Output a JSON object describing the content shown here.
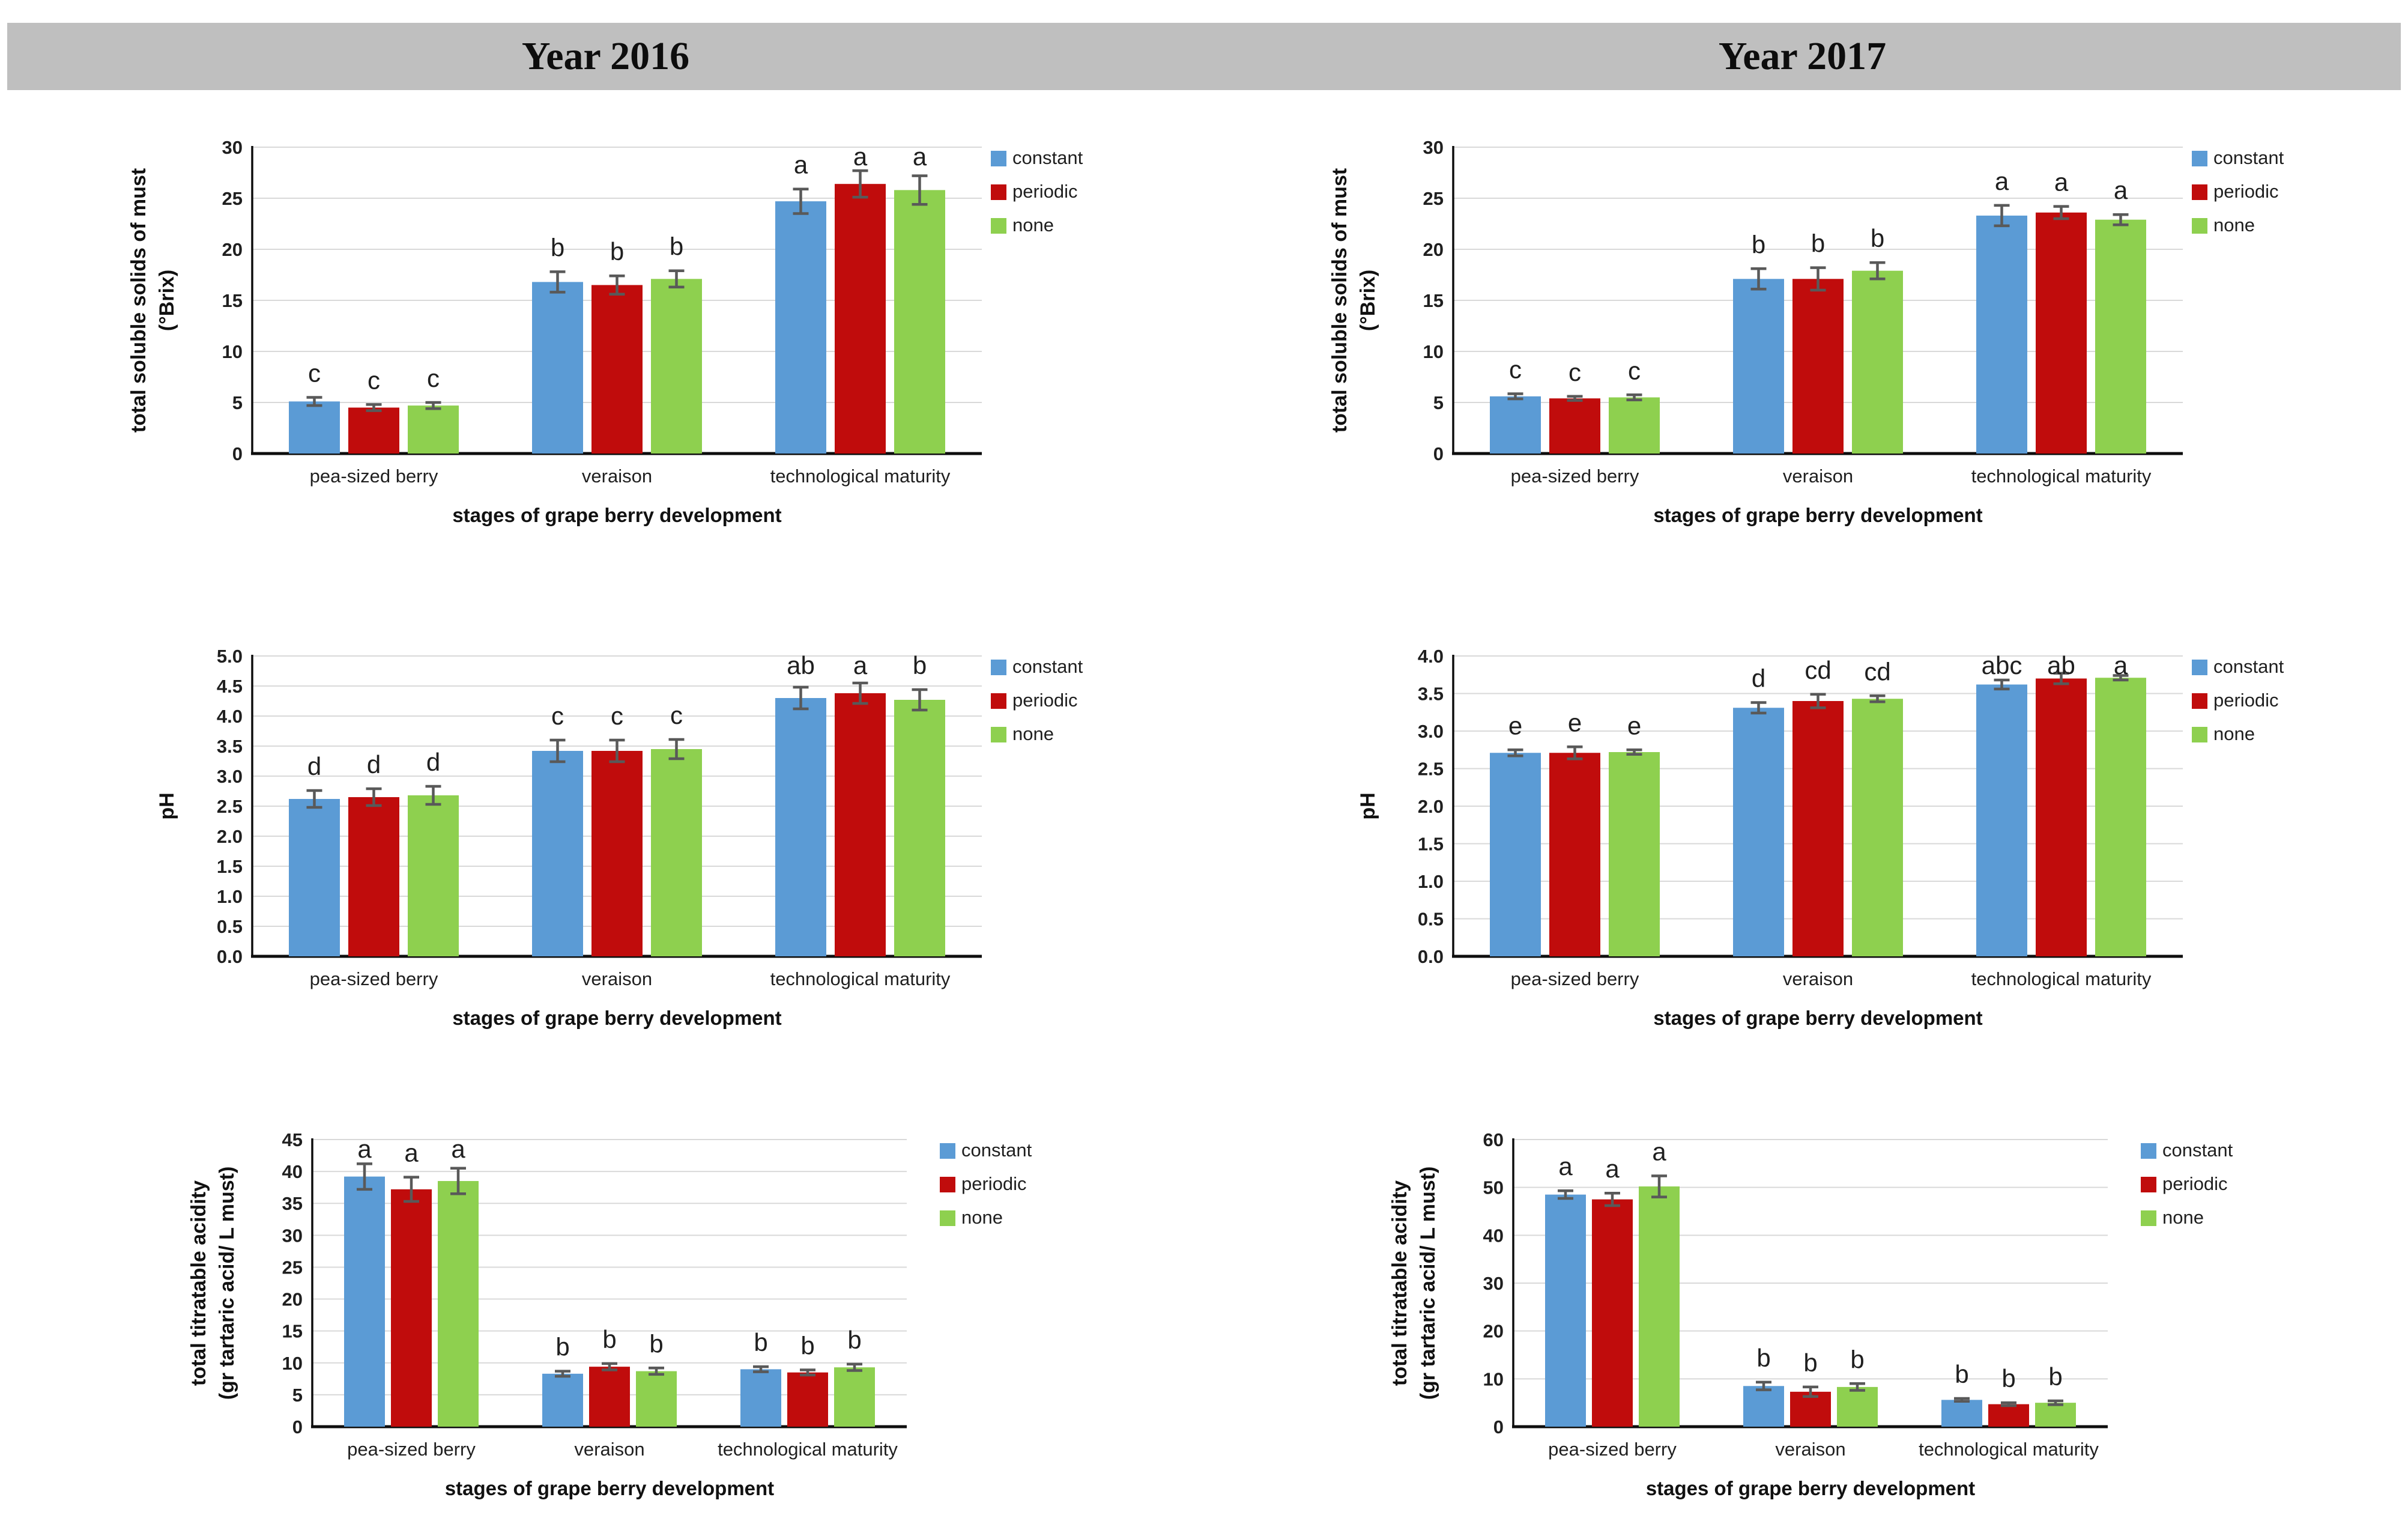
{
  "header": {
    "band_color": "#bfbfbf",
    "columns": [
      "Year 2016",
      "Year 2017"
    ]
  },
  "legend": {
    "items": [
      {
        "label": "constant",
        "color": "#5b9bd5"
      },
      {
        "label": "periodic",
        "color": "#c00c0c"
      },
      {
        "label": "none",
        "color": "#8ed04f"
      }
    ]
  },
  "shared": {
    "x_axis_title": "stages of grape berry development",
    "categories": [
      "pea-sized berry",
      "veraison",
      "technological maturity"
    ],
    "error_bar_color": "#595959",
    "gridline_color": "#d9d9d9",
    "axis_color": "#0d0d0d",
    "text_color": "#1f1f1f"
  },
  "chart_data": [
    {
      "id": "tss-2016",
      "type": "bar",
      "year": "Year 2016",
      "ylabel_lines": [
        "total soluble solids of must",
        "(°Brix)"
      ],
      "xlabel": "stages of grape berry development",
      "categories": [
        "pea-sized berry",
        "veraison",
        "technological maturity"
      ],
      "ylim": [
        0,
        30
      ],
      "ystep": 5,
      "ydecimals": 0,
      "grid": true,
      "legend_position": "right-top",
      "series": [
        {
          "name": "constant",
          "values": [
            5.1,
            16.8,
            24.7
          ],
          "errors": [
            0.4,
            1.0,
            1.2
          ]
        },
        {
          "name": "periodic",
          "values": [
            4.5,
            16.5,
            26.4
          ],
          "errors": [
            0.3,
            0.9,
            1.3
          ]
        },
        {
          "name": "none",
          "values": [
            4.7,
            17.1,
            25.8
          ],
          "errors": [
            0.3,
            0.8,
            1.4
          ]
        }
      ],
      "letters": [
        [
          "c",
          "c",
          "c"
        ],
        [
          "b",
          "b",
          "b"
        ],
        [
          "a",
          "a",
          "a"
        ]
      ]
    },
    {
      "id": "tss-2017",
      "type": "bar",
      "year": "Year 2017",
      "ylabel_lines": [
        "total soluble solids of must",
        "(°Brix)"
      ],
      "xlabel": "stages of grape berry development",
      "categories": [
        "pea-sized berry",
        "veraison",
        "technological maturity"
      ],
      "ylim": [
        0,
        30
      ],
      "ystep": 5,
      "ydecimals": 0,
      "grid": true,
      "legend_position": "right-top",
      "series": [
        {
          "name": "constant",
          "values": [
            5.6,
            17.1,
            23.3
          ],
          "errors": [
            0.25,
            1.0,
            1.0
          ]
        },
        {
          "name": "periodic",
          "values": [
            5.4,
            17.1,
            23.6
          ],
          "errors": [
            0.2,
            1.1,
            0.6
          ]
        },
        {
          "name": "none",
          "values": [
            5.5,
            17.9,
            22.9
          ],
          "errors": [
            0.25,
            0.8,
            0.5
          ]
        }
      ],
      "letters": [
        [
          "c",
          "c",
          "c"
        ],
        [
          "b",
          "b",
          "b"
        ],
        [
          "a",
          "a",
          "a"
        ]
      ]
    },
    {
      "id": "ph-2016",
      "type": "bar",
      "year": "Year 2016",
      "ylabel_lines": [
        "pH"
      ],
      "xlabel": "stages of grape berry development",
      "categories": [
        "pea-sized berry",
        "veraison",
        "technological maturity"
      ],
      "ylim": [
        0.0,
        5.0
      ],
      "ystep": 0.5,
      "ydecimals": 1,
      "grid": true,
      "legend_position": "right-top",
      "series": [
        {
          "name": "constant",
          "values": [
            2.62,
            3.42,
            4.3
          ],
          "errors": [
            0.14,
            0.18,
            0.18
          ]
        },
        {
          "name": "periodic",
          "values": [
            2.65,
            3.42,
            4.38
          ],
          "errors": [
            0.14,
            0.18,
            0.17
          ]
        },
        {
          "name": "none",
          "values": [
            2.68,
            3.45,
            4.27
          ],
          "errors": [
            0.15,
            0.16,
            0.17
          ]
        }
      ],
      "letters": [
        [
          "d",
          "d",
          "d"
        ],
        [
          "c",
          "c",
          "c"
        ],
        [
          "ab",
          "a",
          "b"
        ]
      ]
    },
    {
      "id": "ph-2017",
      "type": "bar",
      "year": "Year 2017",
      "ylabel_lines": [
        "pH"
      ],
      "xlabel": "stages of grape berry development",
      "categories": [
        "pea-sized berry",
        "veraison",
        "technological maturity"
      ],
      "ylim": [
        0.0,
        4.0
      ],
      "ystep": 0.5,
      "ydecimals": 1,
      "grid": true,
      "legend_position": "right-top",
      "series": [
        {
          "name": "constant",
          "values": [
            2.71,
            3.31,
            3.62
          ],
          "errors": [
            0.04,
            0.07,
            0.06
          ]
        },
        {
          "name": "periodic",
          "values": [
            2.71,
            3.4,
            3.7
          ],
          "errors": [
            0.08,
            0.09,
            0.07
          ]
        },
        {
          "name": "none",
          "values": [
            2.72,
            3.43,
            3.71
          ],
          "errors": [
            0.03,
            0.04,
            0.03
          ]
        }
      ],
      "letters": [
        [
          "e",
          "e",
          "e"
        ],
        [
          "d",
          "cd",
          "cd"
        ],
        [
          "abc",
          "ab",
          "a"
        ]
      ]
    },
    {
      "id": "tta-2016",
      "type": "bar",
      "year": "Year 2016",
      "ylabel_lines": [
        "total titratable acidity",
        "(gr tartaric acid/ L must)"
      ],
      "xlabel": "stages of grape berry development",
      "categories": [
        "pea-sized berry",
        "veraison",
        "technological maturity"
      ],
      "ylim": [
        0,
        45
      ],
      "ystep": 5,
      "ydecimals": 0,
      "grid": true,
      "legend_position": "right-top",
      "series": [
        {
          "name": "constant",
          "values": [
            39.2,
            8.3,
            9.0
          ],
          "errors": [
            2.0,
            0.4,
            0.4
          ]
        },
        {
          "name": "periodic",
          "values": [
            37.2,
            9.4,
            8.5
          ],
          "errors": [
            1.9,
            0.5,
            0.4
          ]
        },
        {
          "name": "none",
          "values": [
            38.5,
            8.7,
            9.3
          ],
          "errors": [
            2.0,
            0.5,
            0.5
          ]
        }
      ],
      "letters": [
        [
          "a",
          "a",
          "a"
        ],
        [
          "b",
          "b",
          "b"
        ],
        [
          "b",
          "b",
          "b"
        ]
      ]
    },
    {
      "id": "tta-2017",
      "type": "bar",
      "year": "Year 2017",
      "ylabel_lines": [
        "total titratable acidity",
        "(gr tartaric acid/ L must)"
      ],
      "xlabel": "stages of grape berry development",
      "categories": [
        "pea-sized berry",
        "veraison",
        "technological maturity"
      ],
      "ylim": [
        0,
        60
      ],
      "ystep": 10,
      "ydecimals": 0,
      "grid": true,
      "legend_position": "right-top",
      "series": [
        {
          "name": "constant",
          "values": [
            48.5,
            8.5,
            5.6
          ],
          "errors": [
            0.8,
            0.8,
            0.3
          ]
        },
        {
          "name": "periodic",
          "values": [
            47.5,
            7.3,
            4.7
          ],
          "errors": [
            1.3,
            1.0,
            0.3
          ]
        },
        {
          "name": "none",
          "values": [
            50.2,
            8.3,
            5.0
          ],
          "errors": [
            2.2,
            0.7,
            0.4
          ]
        }
      ],
      "letters": [
        [
          "a",
          "a",
          "a"
        ],
        [
          "b",
          "b",
          "b"
        ],
        [
          "b",
          "b",
          "b"
        ]
      ]
    }
  ]
}
